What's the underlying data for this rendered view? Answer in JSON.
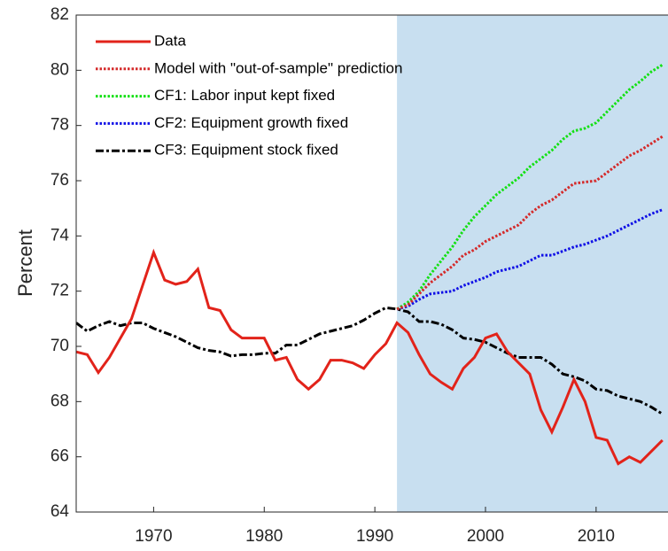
{
  "chart_data": {
    "type": "line",
    "y_label": "Percent",
    "x": [
      1963,
      1964,
      1965,
      1966,
      1967,
      1968,
      1969,
      1970,
      1971,
      1972,
      1973,
      1974,
      1975,
      1976,
      1977,
      1978,
      1979,
      1980,
      1981,
      1982,
      1983,
      1984,
      1985,
      1986,
      1987,
      1988,
      1989,
      1990,
      1991,
      1992,
      1993,
      1994,
      1995,
      1996,
      1997,
      1998,
      1999,
      2000,
      2001,
      2002,
      2003,
      2004,
      2005,
      2006,
      2007,
      2008,
      2009,
      2010,
      2011,
      2012,
      2013,
      2014,
      2015,
      2016
    ],
    "series": [
      {
        "name": "Data",
        "color": "#e2231a",
        "style": "solid",
        "values": [
          69.8,
          69.7,
          69.05,
          69.6,
          70.3,
          71.0,
          72.2,
          73.4,
          72.4,
          72.25,
          72.35,
          72.8,
          71.4,
          71.3,
          70.6,
          70.3,
          70.3,
          70.3,
          69.5,
          69.6,
          68.8,
          68.45,
          68.8,
          69.5,
          69.5,
          69.4,
          69.2,
          69.7,
          70.1,
          70.85,
          70.5,
          69.7,
          69.0,
          68.7,
          68.45,
          69.2,
          69.6,
          70.3,
          70.45,
          69.8,
          69.4,
          69.0,
          67.7,
          66.9,
          67.8,
          68.8,
          68.0,
          66.7,
          66.6,
          65.75,
          66.0,
          65.8,
          66.2,
          66.6
        ]
      },
      {
        "name": "Model with \"out-of-sample\" prediction",
        "color": "#d42a2a",
        "style": "dotted",
        "values": [
          null,
          null,
          null,
          null,
          null,
          null,
          null,
          null,
          null,
          null,
          null,
          null,
          null,
          null,
          null,
          null,
          null,
          null,
          null,
          null,
          null,
          null,
          null,
          null,
          null,
          null,
          null,
          null,
          null,
          71.35,
          71.5,
          71.9,
          72.3,
          72.6,
          72.9,
          73.3,
          73.5,
          73.8,
          74.0,
          74.2,
          74.4,
          74.8,
          75.1,
          75.3,
          75.6,
          75.9,
          75.95,
          76.0,
          76.3,
          76.6,
          76.9,
          77.1,
          77.35,
          77.6
        ]
      },
      {
        "name": "CF1: Labor input kept fixed",
        "color": "#14e014",
        "style": "dotted",
        "values": [
          null,
          null,
          null,
          null,
          null,
          null,
          null,
          null,
          null,
          null,
          null,
          null,
          null,
          null,
          null,
          null,
          null,
          null,
          null,
          null,
          null,
          null,
          null,
          null,
          null,
          null,
          null,
          null,
          null,
          71.35,
          71.6,
          72.0,
          72.6,
          73.1,
          73.6,
          74.2,
          74.7,
          75.1,
          75.5,
          75.8,
          76.1,
          76.5,
          76.8,
          77.1,
          77.5,
          77.8,
          77.9,
          78.1,
          78.5,
          78.9,
          79.3,
          79.6,
          79.95,
          80.2
        ]
      },
      {
        "name": "CF2: Equipment growth fixed",
        "color": "#1010e6",
        "style": "dotted",
        "values": [
          null,
          null,
          null,
          null,
          null,
          null,
          null,
          null,
          null,
          null,
          null,
          null,
          null,
          null,
          null,
          null,
          null,
          null,
          null,
          null,
          null,
          null,
          null,
          null,
          null,
          null,
          null,
          null,
          null,
          71.35,
          71.45,
          71.7,
          71.9,
          71.95,
          72.0,
          72.2,
          72.35,
          72.5,
          72.7,
          72.8,
          72.9,
          73.1,
          73.3,
          73.3,
          73.45,
          73.6,
          73.7,
          73.85,
          74.0,
          74.2,
          74.4,
          74.6,
          74.8,
          74.95
        ]
      },
      {
        "name": "CF3: Equipment stock fixed",
        "color": "#000000",
        "style": "dashdot",
        "values": [
          70.85,
          70.55,
          70.75,
          70.9,
          70.75,
          70.85,
          70.85,
          70.65,
          70.5,
          70.35,
          70.15,
          69.95,
          69.85,
          69.8,
          69.65,
          69.7,
          69.7,
          69.75,
          69.75,
          70.05,
          70.05,
          70.25,
          70.45,
          70.55,
          70.65,
          70.75,
          70.95,
          71.2,
          71.4,
          71.35,
          71.25,
          70.9,
          70.9,
          70.8,
          70.6,
          70.3,
          70.25,
          70.15,
          69.95,
          69.75,
          69.6,
          69.6,
          69.6,
          69.35,
          69.0,
          68.9,
          68.75,
          68.45,
          68.4,
          68.2,
          68.1,
          68.0,
          67.8,
          67.55
        ]
      }
    ],
    "xlim": [
      1963,
      2016.5
    ],
    "xticks": [
      1970,
      1980,
      1990,
      2000,
      2010
    ],
    "ylim": [
      64,
      82
    ],
    "yticks": [
      64,
      66,
      68,
      70,
      72,
      74,
      76,
      78,
      80,
      82
    ],
    "shade_start": 1992,
    "shade_color": "#c8dff0",
    "legend": "upper-left"
  }
}
